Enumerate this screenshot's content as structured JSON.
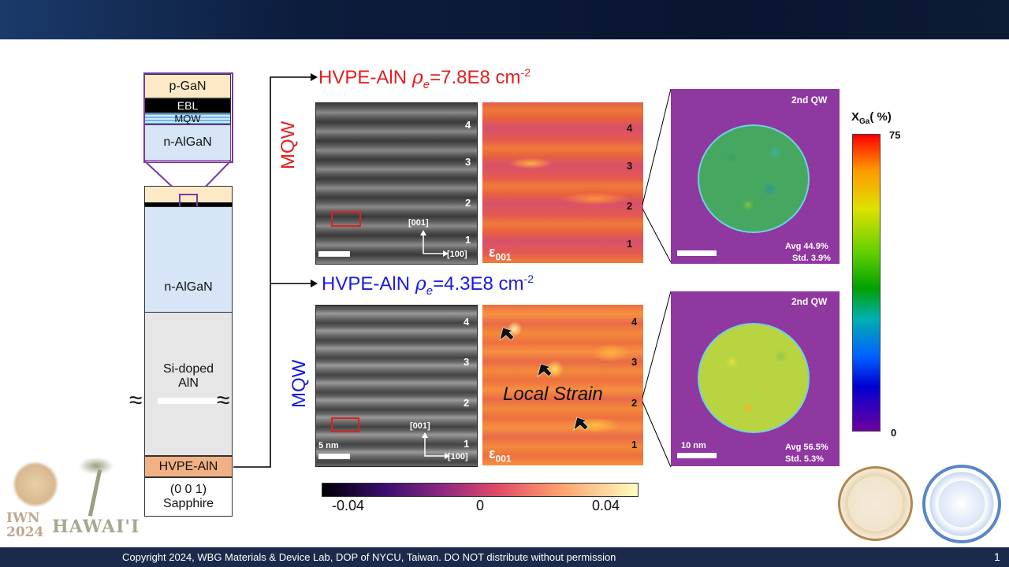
{
  "stack": {
    "pgan": "p-GaN",
    "ebl": "EBL",
    "mqw": "MQW",
    "nalgan_top": "n-AlGaN",
    "nalgan": "n-AlGaN",
    "sidoped": "Si-doped AlN",
    "hvpe": "HVPE-AlN",
    "sapphire": "(0 0 1) Sapphire"
  },
  "top_row": {
    "title_prefix": "HVPE-AlN ",
    "rho": "ρ",
    "rho_sub": "e",
    "title_value": "=7.8E8 cm",
    "title_exp": "-2",
    "side_label": "MQW",
    "wells": [
      "4",
      "3",
      "2",
      "1"
    ],
    "axis_v": "[001]",
    "axis_h": "[100]",
    "eps": "ε",
    "eps_sub": "001",
    "map_label": "2nd QW",
    "avg": "Avg 44.9%",
    "std": "Std. 3.9%"
  },
  "bottom_row": {
    "title_prefix": "HVPE-AlN ",
    "rho": "ρ",
    "rho_sub": "e",
    "title_value": "=4.3E8 cm",
    "title_exp": "-2",
    "side_label": "MQW",
    "wells": [
      "4",
      "3",
      "2",
      "1"
    ],
    "axis_v": "[001]",
    "axis_h": "[100]",
    "scale": "5 nm",
    "eps": "ε",
    "eps_sub": "001",
    "local_strain": "Local Strain",
    "map_label": "2nd QW",
    "map_scale": "10 nm",
    "avg": "Avg 56.5%",
    "std": "Std. 5.3%"
  },
  "strain_colorbar": {
    "ticks": [
      "-0.04",
      "0",
      "0.04"
    ]
  },
  "xga_colorbar": {
    "title": "X",
    "title_sub": "Ga",
    "title_unit": "( %)",
    "max": "75",
    "min": "0"
  },
  "logo": {
    "line1": "IWN",
    "line2": "2024",
    "brand": "HAWAI'I"
  },
  "footer": {
    "copyright": "Copyright 2024, WBG Materials & Device Lab, DOP of NYCU, Taiwan. DO NOT distribute without permission",
    "page": "1"
  },
  "colors": {
    "top_title": "#e41e1e",
    "bottom_title": "#1a1ae0",
    "hvpe_layer": "#f2b184",
    "nalgan_layer": "#d6e6f6",
    "pgan_layer": "#fde9c6"
  }
}
